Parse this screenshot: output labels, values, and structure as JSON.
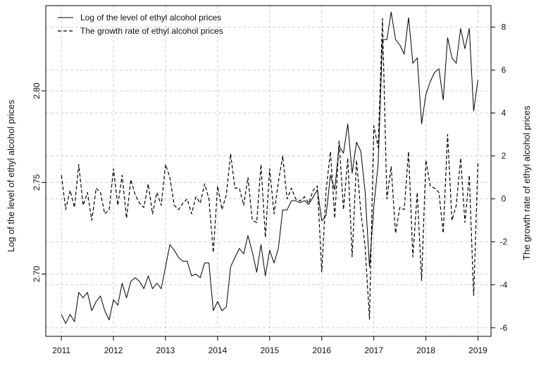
{
  "chart_data": {
    "type": "line",
    "legend": {
      "position": "top-left",
      "entries": [
        {
          "label": "Log of the level of ethyl alcohol prices",
          "style": "solid"
        },
        {
          "label": "The growth rate of ethyl alcohol prices",
          "style": "dashed"
        }
      ]
    },
    "grid": true,
    "colors": {
      "line": "#000000",
      "grid": "#d0d0d0",
      "frame": "#000000"
    },
    "x_axis": {
      "ticks": [
        2011,
        2012,
        2013,
        2014,
        2015,
        2016,
        2017,
        2018,
        2019
      ],
      "tick_labels": [
        "2011",
        "2012",
        "2013",
        "2014",
        "2015",
        "2016",
        "2017",
        "2018",
        "2019"
      ],
      "range": [
        2010.7,
        2019.25
      ]
    },
    "y_left": {
      "label": "Log of the level of ethyl alcohol prices",
      "ticks": [
        2.7,
        2.75,
        2.8
      ],
      "tick_labels": [
        "2.70",
        "2.75",
        "2.80"
      ],
      "range": [
        2.666,
        2.8465
      ]
    },
    "y_right": {
      "label": "The growth rate of ethyl alcohol prices",
      "ticks": [
        -6,
        -4,
        -2,
        0,
        2,
        4,
        6,
        8
      ],
      "tick_labels": [
        "-6",
        "-4",
        "-2",
        "0",
        "2",
        "4",
        "6",
        "8"
      ],
      "range": [
        -6.4,
        9.0
      ]
    },
    "series": [
      {
        "name": "Log of the level of ethyl alcohol prices",
        "axis": "left",
        "style": "solid",
        "x": [
          2011.0,
          2011.083,
          2011.167,
          2011.25,
          2011.333,
          2011.417,
          2011.5,
          2011.583,
          2011.667,
          2011.75,
          2011.833,
          2011.917,
          2012.0,
          2012.083,
          2012.167,
          2012.25,
          2012.333,
          2012.417,
          2012.5,
          2012.583,
          2012.667,
          2012.75,
          2012.833,
          2012.917,
          2013.0,
          2013.083,
          2013.167,
          2013.25,
          2013.333,
          2013.417,
          2013.5,
          2013.583,
          2013.667,
          2013.75,
          2013.833,
          2013.917,
          2014.0,
          2014.083,
          2014.167,
          2014.25,
          2014.333,
          2014.417,
          2014.5,
          2014.583,
          2014.667,
          2014.75,
          2014.833,
          2014.917,
          2015.0,
          2015.083,
          2015.167,
          2015.25,
          2015.333,
          2015.417,
          2015.5,
          2015.583,
          2015.667,
          2015.75,
          2015.833,
          2015.917,
          2016.0,
          2016.083,
          2016.167,
          2016.25,
          2016.333,
          2016.417,
          2016.5,
          2016.583,
          2016.667,
          2016.75,
          2016.833,
          2016.917,
          2017.0,
          2017.083,
          2017.167,
          2017.25,
          2017.333,
          2017.417,
          2017.5,
          2017.583,
          2017.667,
          2017.75,
          2017.833,
          2017.917,
          2018.0,
          2018.083,
          2018.167,
          2018.25,
          2018.333,
          2018.417,
          2018.5,
          2018.583,
          2018.667,
          2018.75,
          2018.833,
          2018.917,
          2019.0
        ],
        "values": [
          2.678,
          2.673,
          2.678,
          2.674,
          2.69,
          2.687,
          2.69,
          2.68,
          2.685,
          2.688,
          2.68,
          2.675,
          2.686,
          2.683,
          2.695,
          2.687,
          2.696,
          2.698,
          2.696,
          2.692,
          2.699,
          2.692,
          2.695,
          2.692,
          2.704,
          2.716,
          2.713,
          2.709,
          2.707,
          2.707,
          2.699,
          2.7,
          2.698,
          2.706,
          2.706,
          2.68,
          2.685,
          2.68,
          2.682,
          2.704,
          2.709,
          2.714,
          2.711,
          2.721,
          2.712,
          2.701,
          2.716,
          2.699,
          2.713,
          2.706,
          2.714,
          2.735,
          2.735,
          2.74,
          2.74,
          2.739,
          2.74,
          2.738,
          2.742,
          2.746,
          2.729,
          2.732,
          2.754,
          2.746,
          2.77,
          2.766,
          2.782,
          2.755,
          2.772,
          2.767,
          2.745,
          2.704,
          2.737,
          2.76,
          2.828,
          2.828,
          2.843,
          2.828,
          2.825,
          2.82,
          2.84,
          2.815,
          2.818,
          2.782,
          2.798,
          2.805,
          2.81,
          2.812,
          2.795,
          2.829,
          2.818,
          2.815,
          2.834,
          2.823,
          2.834,
          2.789,
          2.806
        ]
      },
      {
        "name": "The growth rate of ethyl alcohol prices",
        "axis": "right",
        "style": "dashed",
        "x": [
          2011.0,
          2011.083,
          2011.167,
          2011.25,
          2011.333,
          2011.417,
          2011.5,
          2011.583,
          2011.667,
          2011.75,
          2011.833,
          2011.917,
          2012.0,
          2012.083,
          2012.167,
          2012.25,
          2012.333,
          2012.417,
          2012.5,
          2012.583,
          2012.667,
          2012.75,
          2012.833,
          2012.917,
          2013.0,
          2013.083,
          2013.167,
          2013.25,
          2013.333,
          2013.417,
          2013.5,
          2013.583,
          2013.667,
          2013.75,
          2013.833,
          2013.917,
          2014.0,
          2014.083,
          2014.167,
          2014.25,
          2014.333,
          2014.417,
          2014.5,
          2014.583,
          2014.667,
          2014.75,
          2014.833,
          2014.917,
          2015.0,
          2015.083,
          2015.167,
          2015.25,
          2015.333,
          2015.417,
          2015.5,
          2015.583,
          2015.667,
          2015.75,
          2015.833,
          2015.917,
          2016.0,
          2016.083,
          2016.167,
          2016.25,
          2016.333,
          2016.417,
          2016.5,
          2016.583,
          2016.667,
          2016.75,
          2016.833,
          2016.917,
          2017.0,
          2017.083,
          2017.167,
          2017.25,
          2017.333,
          2017.417,
          2017.5,
          2017.583,
          2017.667,
          2017.75,
          2017.833,
          2017.917,
          2018.0,
          2018.083,
          2018.167,
          2018.25,
          2018.333,
          2018.417,
          2018.5,
          2018.583,
          2018.667,
          2018.75,
          2018.833,
          2018.917,
          2019.0
        ],
        "values": [
          1.1,
          -0.5,
          0.4,
          -0.4,
          1.6,
          -0.3,
          0.3,
          -1.0,
          0.5,
          0.3,
          -0.7,
          -0.5,
          1.4,
          -0.3,
          1.1,
          -0.9,
          0.9,
          0.2,
          -0.2,
          -0.4,
          0.7,
          -0.7,
          0.3,
          -0.3,
          1.6,
          1.0,
          -0.3,
          -0.5,
          -0.2,
          0.0,
          -0.7,
          0.1,
          -0.2,
          0.7,
          0.0,
          -2.5,
          0.6,
          -0.5,
          0.2,
          2.1,
          0.5,
          0.5,
          -0.3,
          1.0,
          -1.0,
          -1.1,
          1.6,
          -1.8,
          1.4,
          -0.7,
          0.8,
          2.0,
          0.0,
          0.5,
          0.0,
          -0.1,
          0.1,
          -0.2,
          0.4,
          0.6,
          -3.4,
          0.4,
          2.2,
          -0.9,
          2.7,
          -0.5,
          1.9,
          -2.7,
          1.8,
          -0.6,
          -2.2,
          -5.6,
          3.4,
          2.4,
          8.4,
          0.0,
          1.5,
          -1.6,
          -0.4,
          -0.5,
          2.2,
          -2.7,
          0.3,
          -3.8,
          1.8,
          0.6,
          0.5,
          0.3,
          -1.6,
          3.0,
          -1.0,
          -0.3,
          1.9,
          -1.1,
          1.1,
          -4.5,
          1.7
        ]
      }
    ]
  }
}
